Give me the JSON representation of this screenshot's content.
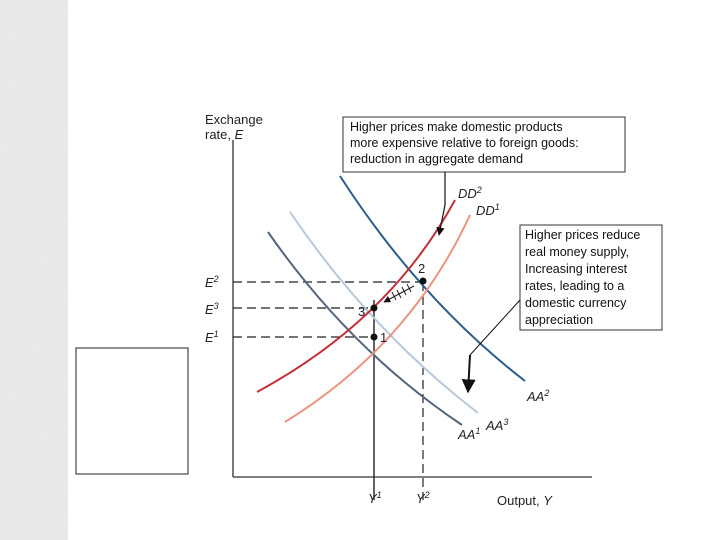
{
  "axis": {
    "y_label": [
      "Exchange",
      "rate, ",
      "E"
    ],
    "x_label": [
      "Output, ",
      "Y"
    ]
  },
  "callouts": [
    {
      "lines": [
        "Higher prices make domestic products",
        "more expensive relative to foreign goods:",
        "reduction in aggregate demand"
      ]
    },
    {
      "lines": [
        "Higher prices reduce",
        "real money supply,",
        "Increasing interest",
        "rates, leading to a",
        "domestic currency",
        "appreciation"
      ]
    }
  ],
  "curves": [
    {
      "base": "DD",
      "sup": "2"
    },
    {
      "base": "DD",
      "sup": "1"
    },
    {
      "base": "AA",
      "sup": "2"
    },
    {
      "base": "AA",
      "sup": "1"
    },
    {
      "base": "AA",
      "sup": "3"
    }
  ],
  "y_levels": [
    {
      "base": "E",
      "sup": "2"
    },
    {
      "base": "E",
      "sup": "3"
    },
    {
      "base": "E",
      "sup": "1"
    }
  ],
  "x_levels": [
    {
      "base": "Y",
      "sup": "1"
    },
    {
      "base": "Y",
      "sup": "2"
    }
  ],
  "points": [
    "2",
    "3",
    "1"
  ]
}
